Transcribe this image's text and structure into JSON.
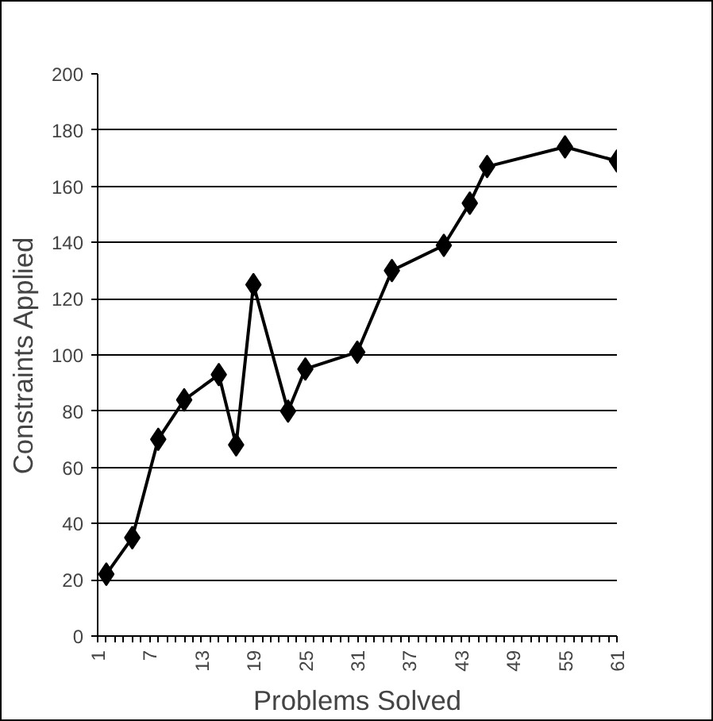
{
  "chart_data": {
    "type": "line",
    "xlabel": "Problems Solved",
    "ylabel": "Constraints Applied",
    "x": [
      2,
      5,
      8,
      11,
      15,
      17,
      19,
      23,
      25,
      31,
      35,
      41,
      44,
      46,
      55,
      61
    ],
    "series": [
      {
        "color": "#000000",
        "values": [
          22,
          35,
          70,
          84,
          93,
          68,
          125,
          80,
          95,
          101,
          130,
          139,
          154,
          167,
          174,
          169
        ]
      }
    ],
    "xlim": [
      1,
      61
    ],
    "xticks": [
      1,
      {
        "value": 2,
        "label": null
      },
      {
        "value": 3,
        "label": null
      },
      {
        "value": 4,
        "label": null
      },
      {
        "value": 5,
        "label": null
      },
      {
        "value": 6,
        "label": null
      },
      7,
      {
        "value": 8,
        "label": null
      },
      {
        "value": 9,
        "label": null
      },
      {
        "value": 10,
        "label": null
      },
      {
        "value": 11,
        "label": null
      },
      {
        "value": 12,
        "label": null
      },
      13,
      {
        "value": 14,
        "label": null
      },
      {
        "value": 15,
        "label": null
      },
      {
        "value": 16,
        "label": null
      },
      {
        "value": 17,
        "label": null
      },
      {
        "value": 18,
        "label": null
      },
      19,
      {
        "value": 20,
        "label": null
      },
      {
        "value": 21,
        "label": null
      },
      {
        "value": 22,
        "label": null
      },
      {
        "value": 23,
        "label": null
      },
      {
        "value": 24,
        "label": null
      },
      25,
      {
        "value": 26,
        "label": null
      },
      {
        "value": 27,
        "label": null
      },
      {
        "value": 28,
        "label": null
      },
      {
        "value": 29,
        "label": null
      },
      {
        "value": 30,
        "label": null
      },
      31,
      {
        "value": 32,
        "label": null
      },
      {
        "value": 33,
        "label": null
      },
      {
        "value": 34,
        "label": null
      },
      {
        "value": 35,
        "label": null
      },
      {
        "value": 36,
        "label": null
      },
      37,
      {
        "value": 38,
        "label": null
      },
      {
        "value": 39,
        "label": null
      },
      {
        "value": 40,
        "label": null
      },
      {
        "value": 41,
        "label": null
      },
      {
        "value": 42,
        "label": null
      },
      43,
      {
        "value": 44,
        "label": null
      },
      {
        "value": 45,
        "label": null
      },
      {
        "value": 46,
        "label": null
      },
      {
        "value": 47,
        "label": null
      },
      {
        "value": 48,
        "label": null
      },
      49,
      {
        "value": 50,
        "label": null
      },
      {
        "value": 51,
        "label": null
      },
      {
        "value": 52,
        "label": null
      },
      {
        "value": 53,
        "label": null
      },
      {
        "value": 54,
        "label": null
      },
      55,
      {
        "value": 56,
        "label": null
      },
      {
        "value": 57,
        "label": null
      },
      {
        "value": 58,
        "label": null
      },
      {
        "value": 59,
        "label": null
      },
      {
        "value": 60,
        "label": null
      },
      61
    ],
    "ylim": [
      0,
      200
    ],
    "yticks": [
      0,
      20,
      40,
      60,
      80,
      100,
      120,
      140,
      160,
      180,
      200
    ],
    "grid": "y",
    "marker": "diamond",
    "line_style": "solid"
  }
}
